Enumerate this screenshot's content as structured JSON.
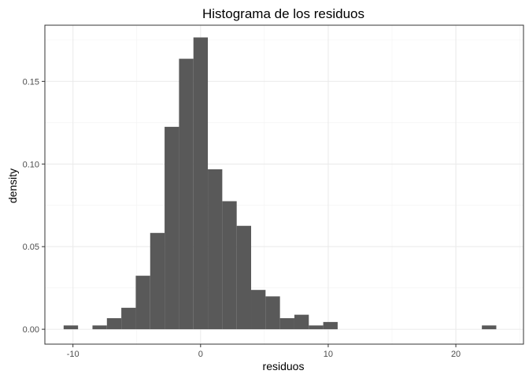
{
  "chart_data": {
    "type": "bar",
    "title": "Histograma de los residuos",
    "xlabel": "residuos",
    "ylabel": "density",
    "xlim": [
      -12.2,
      25.3
    ],
    "ylim": [
      -0.009,
      0.184
    ],
    "x_ticks": [
      -10,
      0,
      10,
      20
    ],
    "x_tick_labels": [
      "-10",
      "0",
      "10",
      "20"
    ],
    "y_ticks": [
      0.0,
      0.05,
      0.1,
      0.15
    ],
    "y_tick_labels": [
      "0.00",
      "0.05",
      "0.10",
      "0.15"
    ],
    "grid": true,
    "bar_color": "#595959",
    "bin_width": 1.13,
    "bins": [
      {
        "x0": -10.73,
        "x1": -9.6,
        "density": 0.0023
      },
      {
        "x0": -9.6,
        "x1": -8.47,
        "density": 0.0
      },
      {
        "x0": -8.47,
        "x1": -7.34,
        "density": 0.0023
      },
      {
        "x0": -7.34,
        "x1": -6.21,
        "density": 0.0067
      },
      {
        "x0": -6.21,
        "x1": -5.08,
        "density": 0.013
      },
      {
        "x0": -5.08,
        "x1": -3.95,
        "density": 0.0324
      },
      {
        "x0": -3.95,
        "x1": -2.82,
        "density": 0.0583
      },
      {
        "x0": -2.82,
        "x1": -1.69,
        "density": 0.1225
      },
      {
        "x0": -1.69,
        "x1": -0.56,
        "density": 0.1637
      },
      {
        "x0": -0.56,
        "x1": 0.57,
        "density": 0.1766
      },
      {
        "x0": 0.57,
        "x1": 1.7,
        "density": 0.0968
      },
      {
        "x0": 1.7,
        "x1": 2.83,
        "density": 0.0775
      },
      {
        "x0": 2.83,
        "x1": 3.96,
        "density": 0.0626
      },
      {
        "x0": 3.96,
        "x1": 5.09,
        "density": 0.0238
      },
      {
        "x0": 5.09,
        "x1": 6.22,
        "density": 0.0199
      },
      {
        "x0": 6.22,
        "x1": 7.35,
        "density": 0.0067
      },
      {
        "x0": 7.35,
        "x1": 8.48,
        "density": 0.0088
      },
      {
        "x0": 8.48,
        "x1": 9.61,
        "density": 0.0023
      },
      {
        "x0": 9.61,
        "x1": 10.74,
        "density": 0.0044
      },
      {
        "x0": 22.04,
        "x1": 23.17,
        "density": 0.0023
      }
    ]
  }
}
